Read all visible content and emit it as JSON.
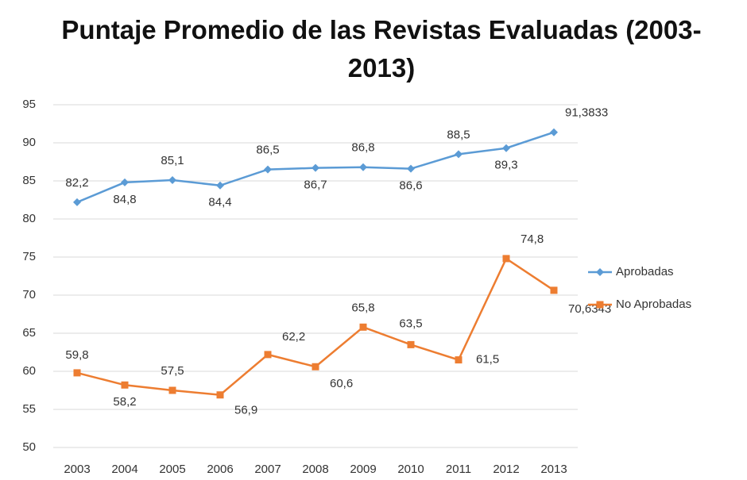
{
  "chart_data": {
    "type": "line",
    "title": "Puntaje Promedio de las Revistas Evaluadas (2003-2013)",
    "categories": [
      "2003",
      "2004",
      "2005",
      "2006",
      "2007",
      "2008",
      "2009",
      "2010",
      "2011",
      "2012",
      "2013"
    ],
    "series": [
      {
        "name": "Aprobadas",
        "color": "#5b9bd5",
        "marker": "diamond",
        "values": [
          82.2,
          84.8,
          85.1,
          84.4,
          86.5,
          86.7,
          86.8,
          86.6,
          88.5,
          89.3,
          91.3833
        ],
        "value_labels": [
          "82,2",
          "84,8",
          "85,1",
          "84,4",
          "86,5",
          "86,7",
          "86,8",
          "86,6",
          "88,5",
          "89,3",
          "91,3833"
        ]
      },
      {
        "name": "No Aprobadas",
        "color": "#ed7d31",
        "marker": "square",
        "values": [
          59.8,
          58.2,
          57.5,
          56.9,
          62.2,
          60.6,
          65.8,
          63.5,
          61.5,
          74.8,
          70.6343
        ],
        "value_labels": [
          "59,8",
          "58,2",
          "57,5",
          "56,9",
          "62,2",
          "60,6",
          "65,8",
          "63,5",
          "61,5",
          "74,8",
          "70,6343"
        ]
      }
    ],
    "ylim": [
      50,
      95
    ],
    "yticks": [
      50,
      55,
      60,
      65,
      70,
      75,
      80,
      85,
      90,
      95
    ],
    "grid": true,
    "legend": "right"
  }
}
